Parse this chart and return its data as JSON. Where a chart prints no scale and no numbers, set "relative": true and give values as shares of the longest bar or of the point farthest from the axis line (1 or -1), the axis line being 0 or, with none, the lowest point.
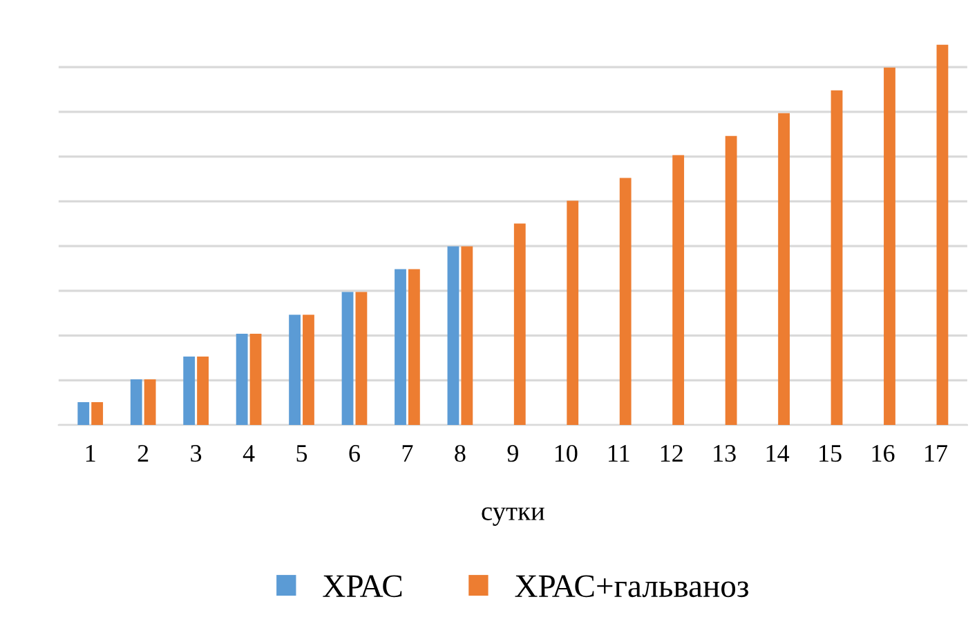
{
  "chart_data": {
    "type": "bar",
    "xlabel": "сутки",
    "relative": true,
    "grid": "y",
    "legend": "bottom",
    "categories": [
      "1",
      "2",
      "3",
      "4",
      "5",
      "6",
      "7",
      "8",
      "9",
      "10",
      "11",
      "12",
      "13",
      "14",
      "15",
      "16",
      "17"
    ],
    "series": [
      {
        "name": "ХРАС",
        "color": "#5b9bd5",
        "values": [
          0.06,
          0.12,
          0.18,
          0.24,
          0.29,
          0.35,
          0.41,
          0.47,
          null,
          null,
          null,
          null,
          null,
          null,
          null,
          null,
          null
        ]
      },
      {
        "name": "ХРАС+гальваноз",
        "color": "#ed7d31",
        "values": [
          0.06,
          0.12,
          0.18,
          0.24,
          0.29,
          0.35,
          0.41,
          0.47,
          0.53,
          0.59,
          0.65,
          0.71,
          0.76,
          0.82,
          0.88,
          0.94,
          1
        ]
      }
    ]
  }
}
